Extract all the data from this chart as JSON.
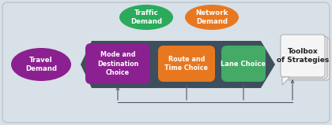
{
  "bg_color": "#d8e0e8",
  "arrow_color": "#3d4f5c",
  "travel_demand_color": "#8b2090",
  "traffic_demand_color": "#2aaa5a",
  "network_demand_color": "#e87820",
  "mode_dest_color": "#8b2090",
  "route_time_color": "#e87820",
  "lane_choice_color": "#44aa66",
  "arrow_feedback_color": "#555566",
  "travel_demand_label": "Travel\nDemand",
  "traffic_demand_label": "Traffic\nDemand",
  "network_demand_label": "Network\nDemand",
  "mode_dest_label": "Mode and\nDestination\nChoice",
  "route_time_label": "Route and\nTime Choice",
  "lane_choice_label": "Lane Choice",
  "toolbox_label": "Toolbox\nof Strategies",
  "figw": 4.2,
  "figh": 1.59,
  "dpi": 100
}
